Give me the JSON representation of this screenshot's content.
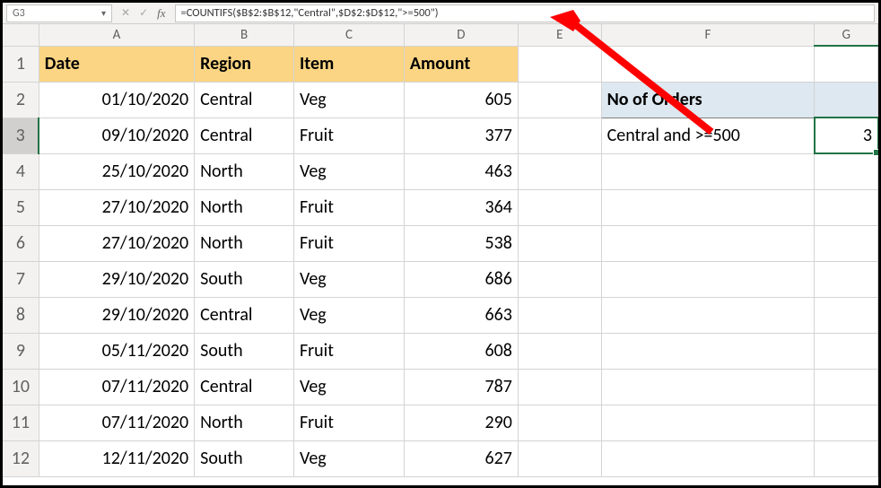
{
  "formula_bar": {
    "cell_ref": "G3",
    "formula": "=COUNTIFS($B$2:$B$12,\"Central\",$D$2:$D$12,\">=500\")"
  },
  "columns": [
    "A",
    "B",
    "C",
    "D",
    "E",
    "F",
    "G"
  ],
  "col_widths": {
    "A": 172,
    "B": 110,
    "C": 122,
    "D": 126,
    "E": 92,
    "F": 236,
    "G": 70
  },
  "headers": {
    "A": "Date",
    "B": "Region",
    "C": "Item",
    "D": "Amount"
  },
  "rows": [
    {
      "A": "01/10/2020",
      "B": "Central",
      "C": "Veg",
      "D": 605
    },
    {
      "A": "09/10/2020",
      "B": "Central",
      "C": "Fruit",
      "D": 377
    },
    {
      "A": "25/10/2020",
      "B": "North",
      "C": "Veg",
      "D": 463
    },
    {
      "A": "27/10/2020",
      "B": "North",
      "C": "Fruit",
      "D": 364
    },
    {
      "A": "27/10/2020",
      "B": "North",
      "C": "Fruit",
      "D": 538
    },
    {
      "A": "29/10/2020",
      "B": "South",
      "C": "Veg",
      "D": 686
    },
    {
      "A": "29/10/2020",
      "B": "Central",
      "C": "Veg",
      "D": 663
    },
    {
      "A": "05/11/2020",
      "B": "South",
      "C": "Fruit",
      "D": 608
    },
    {
      "A": "07/11/2020",
      "B": "Central",
      "C": "Veg",
      "D": 787
    },
    {
      "A": "07/11/2020",
      "B": "North",
      "C": "Fruit",
      "D": 290
    },
    {
      "A": "12/11/2020",
      "B": "South",
      "C": "Veg",
      "D": 627
    }
  ],
  "summary": {
    "title": "No of Orders",
    "label": "Central and >=500",
    "value": 3
  },
  "active_cell": "G3",
  "colors": {
    "header_bg": "#fbd583",
    "summary_bg": "#dee8f0",
    "selection": "#217346",
    "arrow": "#ff0000"
  }
}
